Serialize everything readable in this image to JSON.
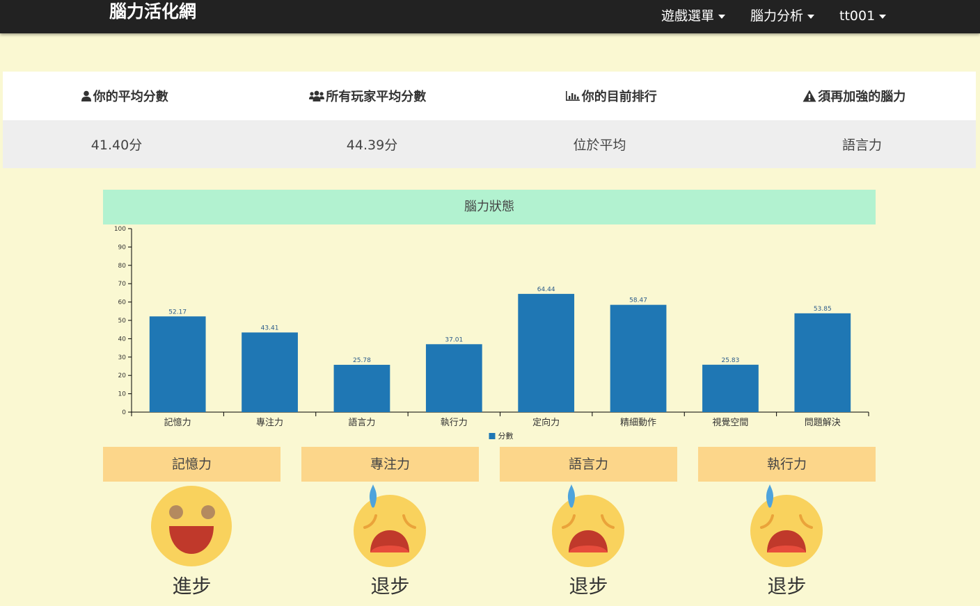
{
  "navbar": {
    "brand": "腦力活化網",
    "items": [
      {
        "label": "遊戲選單"
      },
      {
        "label": "腦力分析"
      },
      {
        "label": "tt001"
      }
    ]
  },
  "stats": {
    "headers": [
      "你的平均分數",
      "所有玩家平均分數",
      "你的目前排行",
      "須再加強的腦力"
    ],
    "values": [
      "41.40分",
      "44.39分",
      "位於平均",
      "語言力"
    ],
    "icons": [
      "user-icon",
      "users-icon",
      "bar-chart-icon",
      "warning-icon"
    ]
  },
  "chart_title": "腦力狀態",
  "chart_data": {
    "type": "bar",
    "title": "",
    "xlabel": "",
    "ylabel": "",
    "categories": [
      "記憶力",
      "專注力",
      "語言力",
      "執行力",
      "定向力",
      "精細動作",
      "視覺空間",
      "問題解決"
    ],
    "series": [
      {
        "name": "分數",
        "values": [
          52.17,
          43.41,
          25.78,
          37.01,
          64.44,
          58.47,
          25.83,
          53.85
        ],
        "color": "#1f77b4"
      }
    ],
    "ylim": [
      0,
      100
    ],
    "yticks": [
      0,
      10,
      20,
      30,
      40,
      50,
      60,
      70,
      80,
      90,
      100
    ],
    "legend": "bottom-center",
    "grid": false
  },
  "abilities": [
    {
      "label": "記憶力",
      "status": "進步",
      "mood": "happy"
    },
    {
      "label": "專注力",
      "status": "退步",
      "mood": "sad"
    },
    {
      "label": "語言力",
      "status": "退步",
      "mood": "sad"
    },
    {
      "label": "執行力",
      "status": "退步",
      "mood": "sad"
    }
  ],
  "colors": {
    "background": "#faf8d2",
    "navbar": "#222222",
    "chart_header": "#b2f2d0",
    "ability_tile": "#fcd68a",
    "bar": "#1f77b4"
  }
}
